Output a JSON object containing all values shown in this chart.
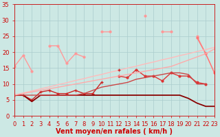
{
  "bg_color": "#cce8e4",
  "grid_color": "#aacccc",
  "xlabel": "Vent moyen/en rafales ( km/h )",
  "xlim": [
    0,
    23
  ],
  "ylim": [
    0,
    35
  ],
  "xticks": [
    0,
    1,
    2,
    3,
    4,
    5,
    6,
    7,
    8,
    9,
    10,
    11,
    12,
    13,
    14,
    15,
    16,
    17,
    18,
    19,
    20,
    21,
    22,
    23
  ],
  "yticks": [
    0,
    5,
    10,
    15,
    20,
    25,
    30,
    35
  ],
  "series": [
    {
      "x": [
        0,
        1,
        2,
        3,
        4,
        5,
        6,
        7,
        8,
        9,
        10,
        11,
        12,
        13,
        14,
        15,
        16,
        17,
        18,
        19,
        20,
        21,
        22,
        23
      ],
      "y": [
        15.5,
        19.0,
        14.0,
        null,
        22.0,
        22.0,
        16.5,
        19.5,
        18.5,
        null,
        26.5,
        26.5,
        null,
        null,
        null,
        31.5,
        null,
        26.5,
        26.5,
        null,
        null,
        25.0,
        19.5,
        13.5
      ],
      "color": "#ff9999",
      "lw": 1.0,
      "marker": "o",
      "ms": 2.0
    },
    {
      "x": [
        0,
        1,
        2,
        3,
        4,
        5,
        6,
        7,
        8,
        9,
        10,
        11,
        12,
        13,
        14,
        15,
        16,
        17,
        18,
        19,
        20,
        21,
        22,
        23
      ],
      "y": [
        null,
        null,
        null,
        null,
        null,
        null,
        null,
        null,
        null,
        null,
        null,
        null,
        null,
        null,
        null,
        null,
        null,
        null,
        null,
        null,
        null,
        24.5,
        19.5,
        13.5
      ],
      "color": "#ff7777",
      "lw": 1.0,
      "marker": "o",
      "ms": 2.0
    },
    {
      "x": [
        0,
        1,
        2,
        3,
        4,
        5,
        6,
        7,
        8,
        9,
        10,
        11,
        12,
        13,
        14,
        15,
        16,
        17,
        18,
        19,
        20,
        21,
        22,
        23
      ],
      "y": [
        6.5,
        7.2,
        7.8,
        8.5,
        9.1,
        9.8,
        10.4,
        11.1,
        11.7,
        12.4,
        13.0,
        13.7,
        14.3,
        15.0,
        15.6,
        16.3,
        16.9,
        17.6,
        18.2,
        18.9,
        19.5,
        20.2,
        20.8,
        21.5
      ],
      "color": "#ffbbbb",
      "lw": 1.0,
      "marker": null,
      "ms": 0
    },
    {
      "x": [
        0,
        1,
        2,
        3,
        4,
        5,
        6,
        7,
        8,
        9,
        10,
        11,
        12,
        13,
        14,
        15,
        16,
        17,
        18,
        19,
        20,
        21,
        22,
        23
      ],
      "y": [
        null,
        null,
        null,
        null,
        null,
        null,
        null,
        null,
        null,
        null,
        null,
        null,
        12.5,
        12.0,
        14.5,
        12.5,
        12.5,
        11.0,
        13.5,
        12.5,
        12.5,
        10.5,
        10.0,
        null
      ],
      "color": "#dd3333",
      "lw": 1.0,
      "marker": "o",
      "ms": 2.0
    },
    {
      "x": [
        0,
        1,
        2,
        3,
        4,
        5,
        6,
        7,
        8,
        9,
        10,
        11,
        12,
        13,
        14,
        15,
        16,
        17,
        18,
        19,
        20,
        21,
        22,
        23
      ],
      "y": [
        6.5,
        6.5,
        5.0,
        7.5,
        8.0,
        7.0,
        7.0,
        8.0,
        7.0,
        7.0,
        10.5,
        null,
        14.5,
        null,
        null,
        null,
        null,
        null,
        null,
        null,
        null,
        null,
        null,
        null
      ],
      "color": "#cc2222",
      "lw": 1.0,
      "marker": "+",
      "ms": 3.5
    },
    {
      "x": [
        0,
        1,
        2,
        3,
        4,
        5,
        6,
        7,
        8,
        9,
        10,
        11,
        12,
        13,
        14,
        15,
        16,
        17,
        18,
        19,
        20,
        21,
        22,
        23
      ],
      "y": [
        6.5,
        6.5,
        4.5,
        6.5,
        6.5,
        6.5,
        6.5,
        6.5,
        6.5,
        6.5,
        6.5,
        6.5,
        6.5,
        6.5,
        6.5,
        6.5,
        6.5,
        6.5,
        6.5,
        6.5,
        5.5,
        4.0,
        3.0,
        3.0
      ],
      "color": "#880000",
      "lw": 1.3,
      "marker": null,
      "ms": 0
    },
    {
      "x": [
        0,
        1,
        2,
        3,
        4,
        5,
        6,
        7,
        8,
        9,
        10,
        11,
        12,
        13,
        14,
        15,
        16,
        17,
        18,
        19,
        20,
        21,
        22,
        23
      ],
      "y": [
        6.5,
        6.5,
        6.5,
        6.5,
        6.5,
        6.5,
        6.5,
        6.5,
        7.0,
        8.0,
        9.0,
        9.5,
        10.0,
        10.5,
        11.5,
        12.0,
        12.5,
        13.0,
        13.5,
        13.5,
        13.0,
        10.0,
        10.0,
        null
      ],
      "color": "#cc4444",
      "lw": 1.0,
      "marker": null,
      "ms": 0
    },
    {
      "x": [
        0,
        1,
        2,
        3,
        4,
        5,
        6,
        7,
        8,
        9,
        10,
        11,
        12,
        13,
        14,
        15,
        16,
        17,
        18,
        19,
        20,
        21,
        22,
        23
      ],
      "y": [
        6.5,
        7.0,
        7.5,
        8.0,
        8.5,
        9.0,
        9.5,
        10.0,
        10.5,
        11.0,
        11.5,
        12.0,
        12.5,
        13.0,
        13.5,
        14.0,
        14.5,
        15.0,
        15.5,
        16.5,
        17.5,
        18.5,
        19.5,
        21.0
      ],
      "color": "#ffaaaa",
      "lw": 1.0,
      "marker": null,
      "ms": 0
    }
  ],
  "label_color": "#cc0000",
  "tick_color": "#cc0000",
  "xlabel_fontsize": 7,
  "tick_fontsize": 6
}
